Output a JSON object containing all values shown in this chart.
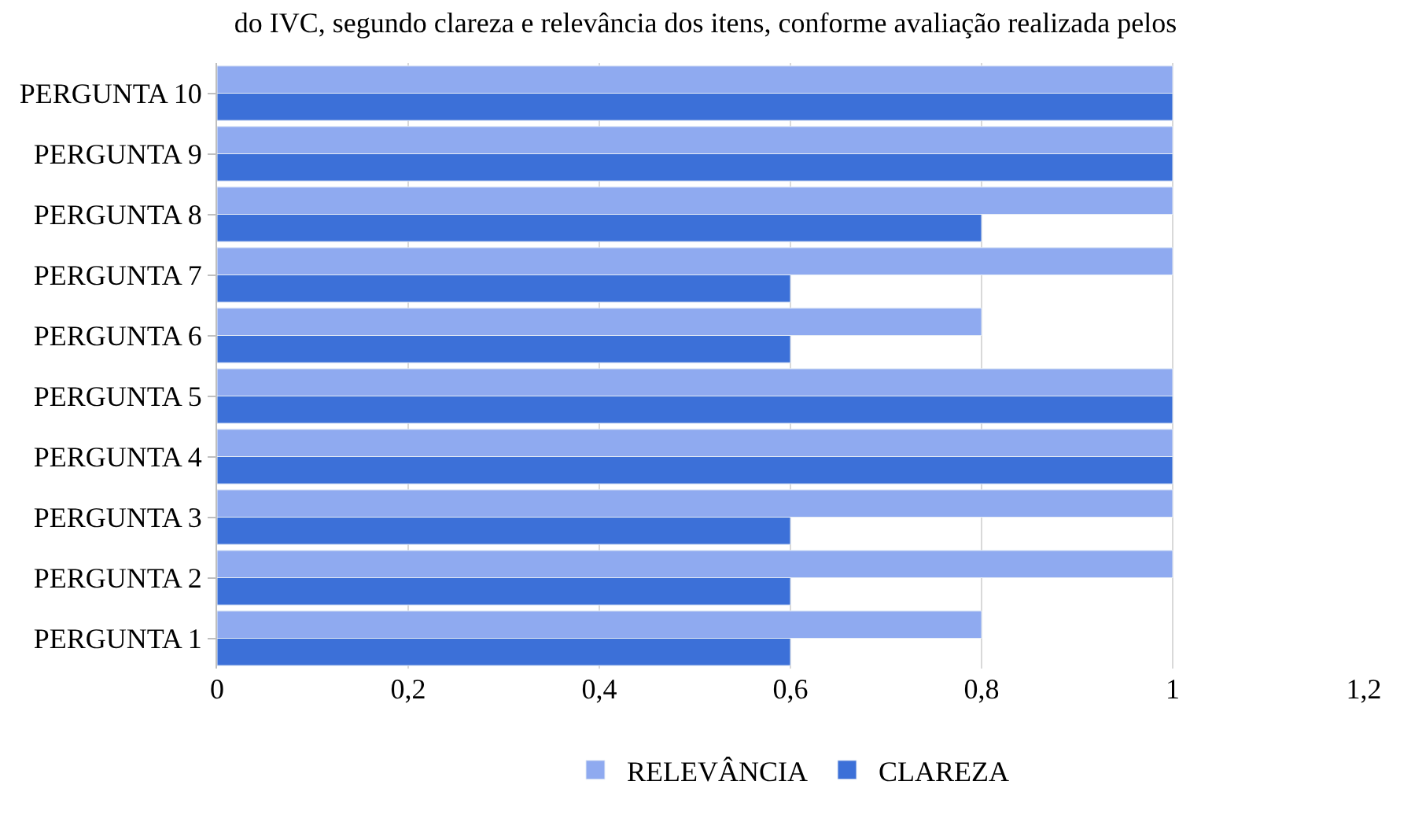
{
  "chart_data": {
    "type": "bar",
    "orientation": "horizontal",
    "title": "do IVC, segundo clareza e relevância dos itens, conforme avaliação realizada pelos",
    "categories": [
      "PERGUNTA 10",
      "PERGUNTA 9",
      "PERGUNTA 8",
      "PERGUNTA 7",
      "PERGUNTA 6",
      "PERGUNTA 5",
      "PERGUNTA 4",
      "PERGUNTA 3",
      "PERGUNTA 2",
      "PERGUNTA 1"
    ],
    "series": [
      {
        "name": "RELEVÂNCIA",
        "color": "#8faaf0",
        "values": [
          1,
          1,
          1,
          1,
          0.8,
          1,
          1,
          1,
          1,
          0.8
        ]
      },
      {
        "name": "CLAREZA",
        "color": "#3c70d8",
        "values": [
          1,
          1,
          0.8,
          0.6,
          0.6,
          1,
          1,
          0.6,
          0.6,
          0.6
        ]
      }
    ],
    "xlim": [
      0,
      1.2
    ],
    "xticks": [
      0,
      {
        "value": 0.2,
        "label": "0,2"
      },
      {
        "value": 0.4,
        "label": "0,4"
      },
      {
        "value": 0.6,
        "label": "0,6"
      },
      {
        "value": 0.8,
        "label": "0,8"
      },
      1,
      {
        "value": 1.2,
        "label": "1,2"
      }
    ],
    "grid": "x",
    "legend": "bottom"
  }
}
